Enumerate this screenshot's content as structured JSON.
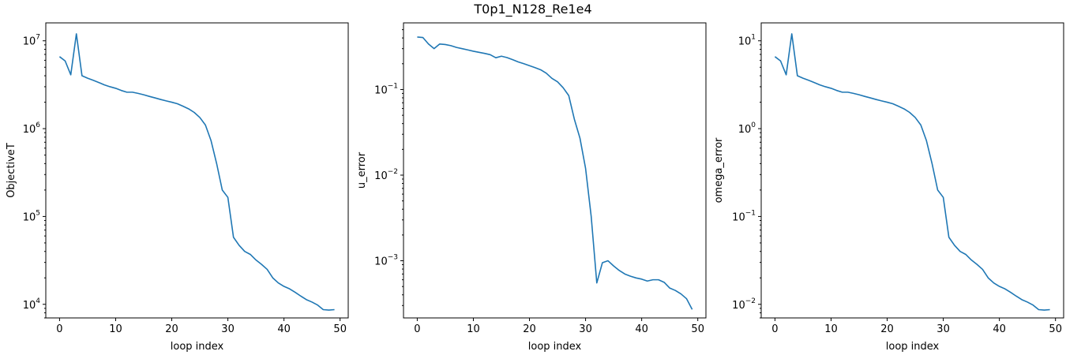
{
  "title": "T0p1_N128_Re1e4",
  "colors": {
    "series": "#1f77b4"
  },
  "chart_data": [
    {
      "type": "line",
      "xlabel": "loop index",
      "ylabel": "ObjectiveT",
      "yscale": "log",
      "xlim": [
        -2.45,
        51.45
      ],
      "ylim": [
        7000,
        16000000
      ],
      "xticks": [
        0,
        10,
        20,
        30,
        40,
        50
      ],
      "yticks": [
        {
          "value": 10000,
          "mantissa": "10",
          "exp": "4"
        },
        {
          "value": 100000,
          "mantissa": "10",
          "exp": "5"
        },
        {
          "value": 1000000,
          "mantissa": "10",
          "exp": "6"
        },
        {
          "value": 10000000,
          "mantissa": "10",
          "exp": "7"
        }
      ],
      "x": [
        0,
        1,
        2,
        3,
        4,
        5,
        6,
        7,
        8,
        9,
        10,
        11,
        12,
        13,
        14,
        15,
        16,
        17,
        18,
        19,
        20,
        21,
        22,
        23,
        24,
        25,
        26,
        27,
        28,
        29,
        30,
        31,
        32,
        33,
        34,
        35,
        36,
        37,
        38,
        39,
        40,
        41,
        42,
        43,
        44,
        45,
        46,
        47,
        48,
        49
      ],
      "y": [
        6600000,
        5900000,
        4100000,
        12000000,
        4000000,
        3750000,
        3550000,
        3350000,
        3150000,
        3000000,
        2880000,
        2720000,
        2600000,
        2600000,
        2520000,
        2430000,
        2330000,
        2240000,
        2150000,
        2070000,
        2000000,
        1920000,
        1800000,
        1680000,
        1530000,
        1340000,
        1100000,
        730000,
        400000,
        200000,
        165000,
        58000,
        47000,
        40000,
        37000,
        32000,
        28500,
        25000,
        20000,
        17500,
        16000,
        15000,
        13700,
        12400,
        11300,
        10600,
        9800,
        8700,
        8600,
        8700
      ]
    },
    {
      "type": "line",
      "xlabel": "loop index",
      "ylabel": "u_error",
      "yscale": "log",
      "xlim": [
        -2.45,
        51.45
      ],
      "ylim": [
        0.000215,
        0.6
      ],
      "xticks": [
        0,
        10,
        20,
        30,
        40,
        50
      ],
      "yticks": [
        {
          "value": 0.001,
          "mantissa": "10",
          "exp": "−3"
        },
        {
          "value": 0.01,
          "mantissa": "10",
          "exp": "−2"
        },
        {
          "value": 0.1,
          "mantissa": "10",
          "exp": "−1"
        }
      ],
      "x": [
        0,
        1,
        2,
        3,
        4,
        5,
        6,
        7,
        8,
        9,
        10,
        11,
        12,
        13,
        14,
        15,
        16,
        17,
        18,
        19,
        20,
        21,
        22,
        23,
        24,
        25,
        26,
        27,
        28,
        29,
        30,
        31,
        32,
        33,
        34,
        35,
        36,
        37,
        38,
        39,
        40,
        41,
        42,
        43,
        44,
        45,
        46,
        47,
        48,
        49
      ],
      "y": [
        0.41,
        0.405,
        0.34,
        0.3,
        0.34,
        0.335,
        0.325,
        0.31,
        0.3,
        0.29,
        0.28,
        0.272,
        0.264,
        0.255,
        0.235,
        0.245,
        0.236,
        0.223,
        0.21,
        0.2,
        0.19,
        0.18,
        0.17,
        0.155,
        0.135,
        0.123,
        0.105,
        0.085,
        0.045,
        0.027,
        0.012,
        0.0033,
        0.00055,
        0.00095,
        0.001,
        0.00087,
        0.00077,
        0.0007,
        0.00066,
        0.00063,
        0.00061,
        0.00058,
        0.0006,
        0.0006,
        0.00056,
        0.00048,
        0.00045,
        0.00041,
        0.00036,
        0.00027
      ]
    },
    {
      "type": "line",
      "xlabel": "loop index",
      "ylabel": "omega_error",
      "yscale": "log",
      "xlim": [
        -2.45,
        51.45
      ],
      "ylim": [
        0.007,
        16
      ],
      "xticks": [
        0,
        10,
        20,
        30,
        40,
        50
      ],
      "yticks": [
        {
          "value": 0.01,
          "mantissa": "10",
          "exp": "−2"
        },
        {
          "value": 0.1,
          "mantissa": "10",
          "exp": "−1"
        },
        {
          "value": 1,
          "mantissa": "10",
          "exp": "0"
        },
        {
          "value": 10,
          "mantissa": "10",
          "exp": "1"
        }
      ],
      "x": [
        0,
        1,
        2,
        3,
        4,
        5,
        6,
        7,
        8,
        9,
        10,
        11,
        12,
        13,
        14,
        15,
        16,
        17,
        18,
        19,
        20,
        21,
        22,
        23,
        24,
        25,
        26,
        27,
        28,
        29,
        30,
        31,
        32,
        33,
        34,
        35,
        36,
        37,
        38,
        39,
        40,
        41,
        42,
        43,
        44,
        45,
        46,
        47,
        48,
        49
      ],
      "y": [
        6.6,
        5.9,
        4.1,
        12,
        4,
        3.75,
        3.55,
        3.35,
        3.15,
        3,
        2.88,
        2.72,
        2.6,
        2.6,
        2.52,
        2.43,
        2.33,
        2.24,
        2.15,
        2.07,
        2,
        1.92,
        1.8,
        1.68,
        1.53,
        1.34,
        1.1,
        0.73,
        0.4,
        0.2,
        0.165,
        0.058,
        0.047,
        0.04,
        0.037,
        0.032,
        0.0285,
        0.025,
        0.02,
        0.0175,
        0.016,
        0.015,
        0.0137,
        0.0124,
        0.0113,
        0.0106,
        0.0098,
        0.0087,
        0.0086,
        0.0087
      ]
    }
  ]
}
